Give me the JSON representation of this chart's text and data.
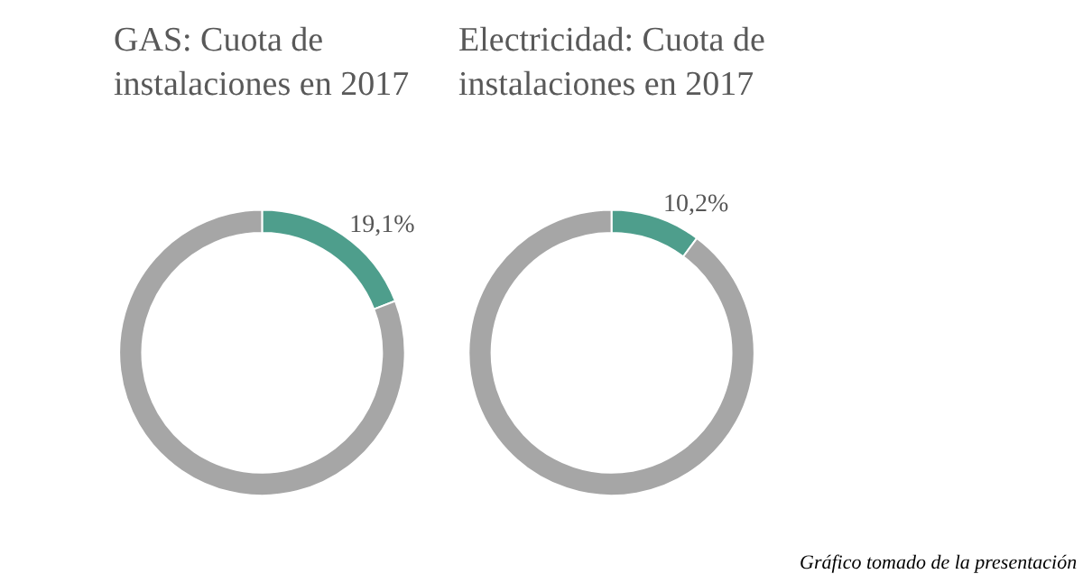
{
  "chart_data": [
    {
      "type": "donut",
      "title": "GAS: Cuota de instalaciones en 2017",
      "categories": [
        null,
        null
      ],
      "values": [
        19.1,
        80.9
      ],
      "colors": [
        "#4e9e8c",
        "#a6a6a6"
      ],
      "value_labels": [
        "19,1%",
        null
      ]
    },
    {
      "type": "donut",
      "title": "Electricidad: Cuota de instalaciones en 2017",
      "categories": [
        null,
        null
      ],
      "values": [
        10.2,
        89.8
      ],
      "colors": [
        "#4e9e8c",
        "#a6a6a6"
      ],
      "value_labels": [
        "10,2%",
        null
      ],
      "annotations": [
        "Gráfico tomado de la presentación"
      ]
    }
  ]
}
